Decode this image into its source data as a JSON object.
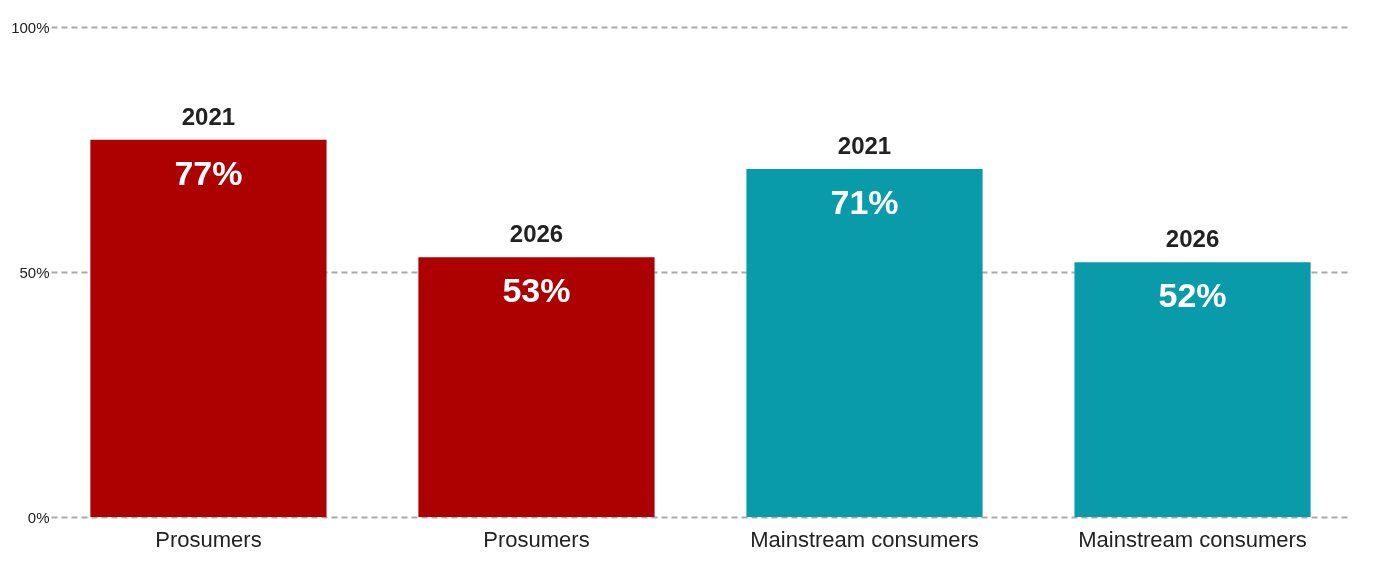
{
  "chart_data": {
    "type": "bar",
    "categories": [
      "Prosumers",
      "Prosumers",
      "Mainstream consumers",
      "Mainstream consumers"
    ],
    "values": [
      77,
      53,
      71,
      52
    ],
    "colors": [
      "#ad0000",
      "#ad0000",
      "#0a9bab",
      "#0a9bab"
    ],
    "value_labels": [
      "77%",
      "53%",
      "71%",
      "52%"
    ],
    "annotations": [
      "2021",
      "2026",
      "2021",
      "2026"
    ],
    "ylim": [
      0,
      100
    ],
    "yticks": [
      {
        "value": 0,
        "label": "0%"
      },
      {
        "value": 50,
        "label": "50%"
      },
      {
        "value": 100,
        "label": "100%"
      }
    ],
    "grid": "y"
  }
}
